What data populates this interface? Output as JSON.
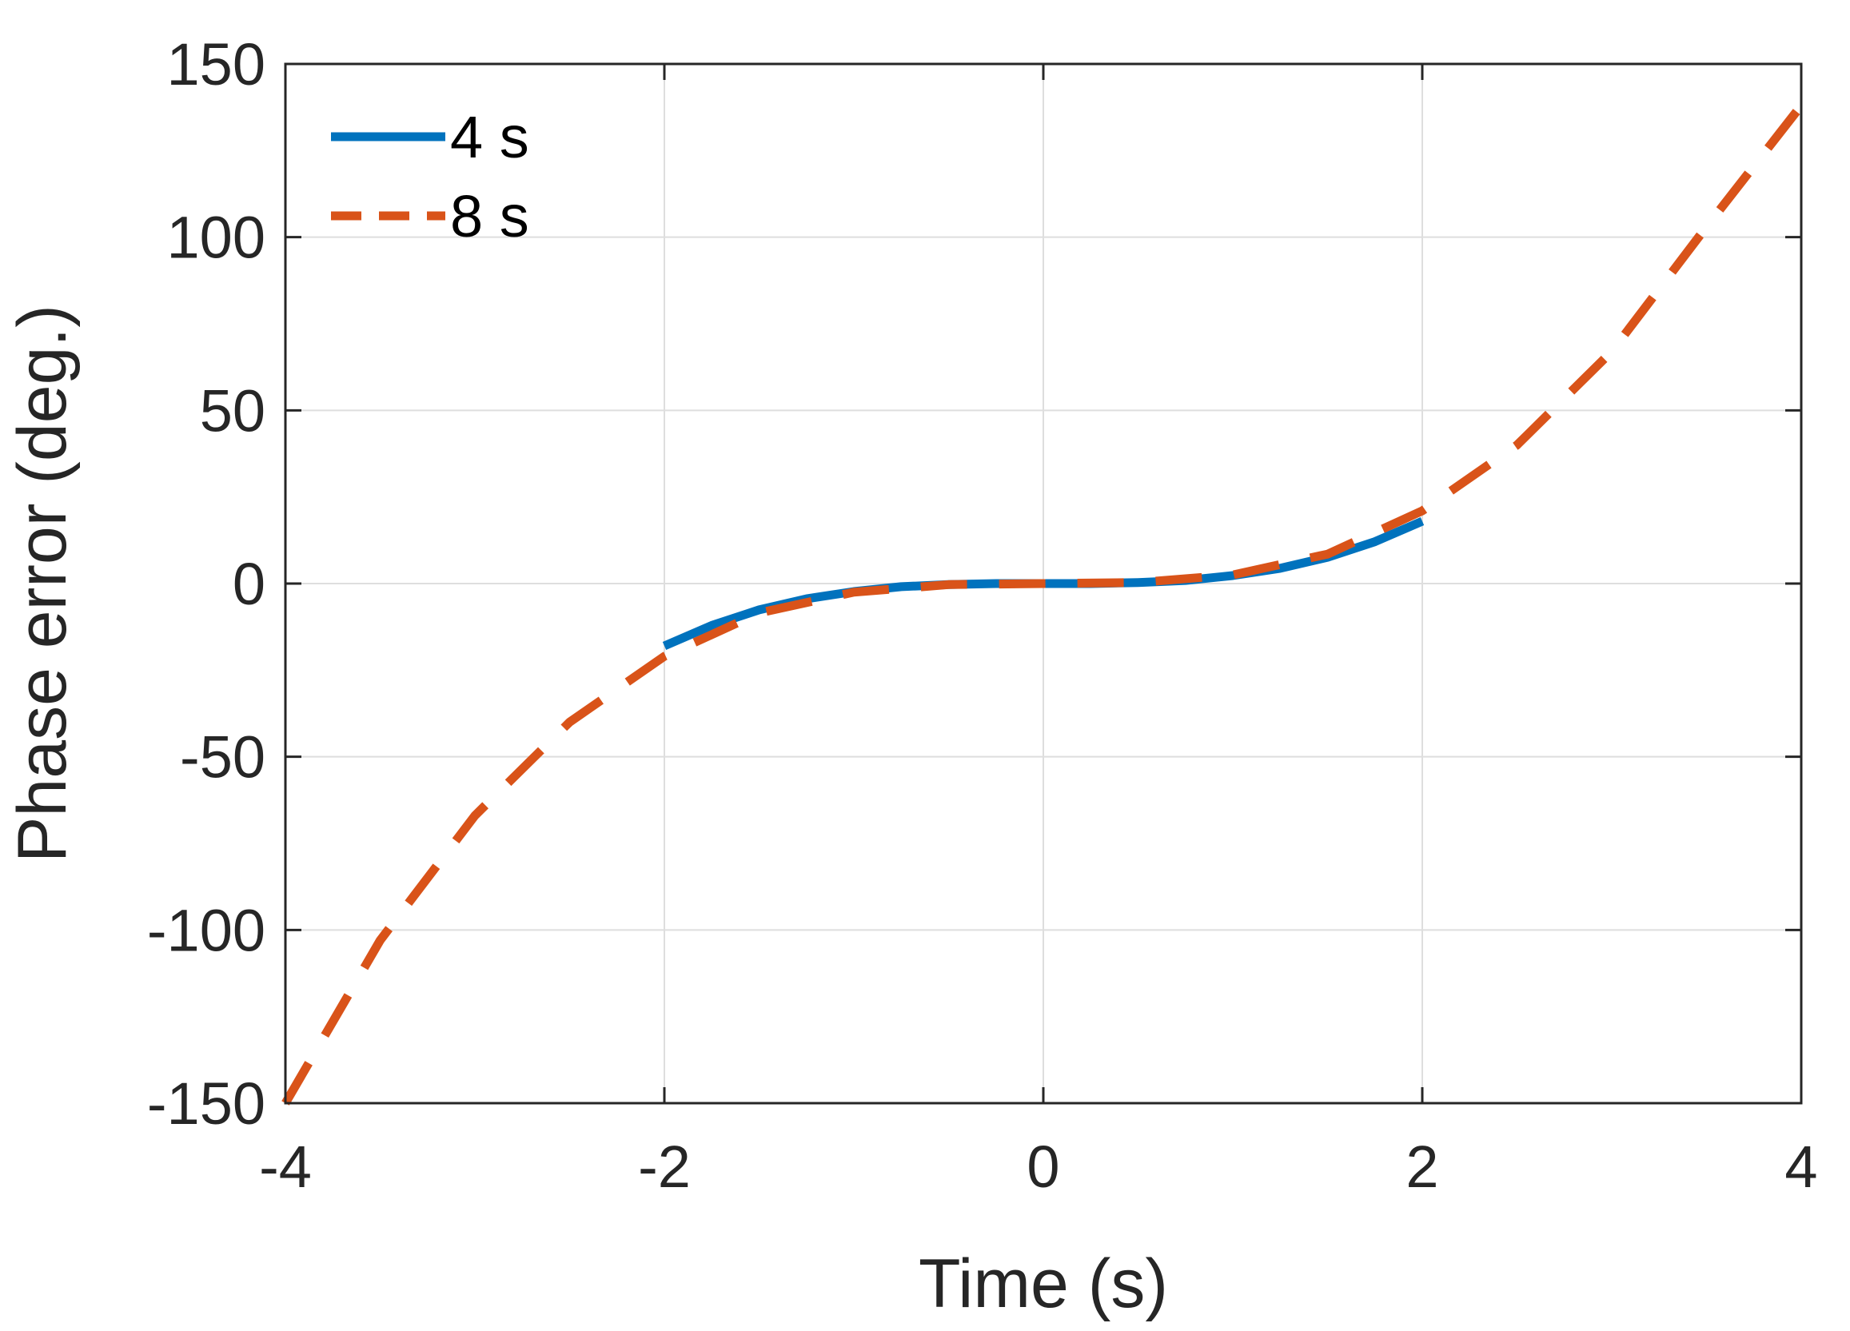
{
  "chart_data": {
    "type": "line",
    "xlabel": "Time (s)",
    "ylabel": "Phase error (deg.)",
    "xlim": [
      -4,
      4
    ],
    "ylim": [
      -150,
      150
    ],
    "xticks": [
      -4,
      -2,
      0,
      2,
      4
    ],
    "yticks": [
      -150,
      -100,
      -50,
      0,
      50,
      100,
      150
    ],
    "xtick_labels": [
      "-4",
      "-2",
      "0",
      "2",
      "4"
    ],
    "ytick_labels": [
      "-150",
      "-100",
      "-50",
      "0",
      "50",
      "100",
      "150"
    ],
    "grid": true,
    "legend_position": "top-left",
    "series": [
      {
        "name": "4 s",
        "color": "#0072BD",
        "style": "solid",
        "x": [
          -2.0,
          -1.75,
          -1.5,
          -1.25,
          -1.0,
          -0.75,
          -0.5,
          -0.25,
          0.0,
          0.25,
          0.5,
          0.75,
          1.0,
          1.25,
          1.5,
          1.75,
          2.0
        ],
        "y": [
          -18.0,
          -12.1,
          -7.6,
          -4.4,
          -2.3,
          -0.9,
          -0.3,
          0.0,
          0.0,
          0.0,
          0.3,
          0.9,
          2.3,
          4.4,
          7.6,
          12.1,
          18.0
        ]
      },
      {
        "name": "8 s",
        "color": "#D95319",
        "style": "dashed",
        "x": [
          -4.0,
          -3.5,
          -3.0,
          -2.5,
          -2.0,
          -1.5,
          -1.0,
          -0.5,
          0.0,
          0.5,
          1.0,
          1.5,
          2.0,
          2.5,
          3.0,
          3.5,
          4.0
        ],
        "y": [
          -150.0,
          -103.0,
          -67.0,
          -40.0,
          -21.0,
          -8.5,
          -2.5,
          -0.3,
          0.0,
          0.3,
          2.5,
          8.5,
          21.0,
          40.0,
          67.0,
          103.0,
          138.0
        ]
      }
    ]
  }
}
